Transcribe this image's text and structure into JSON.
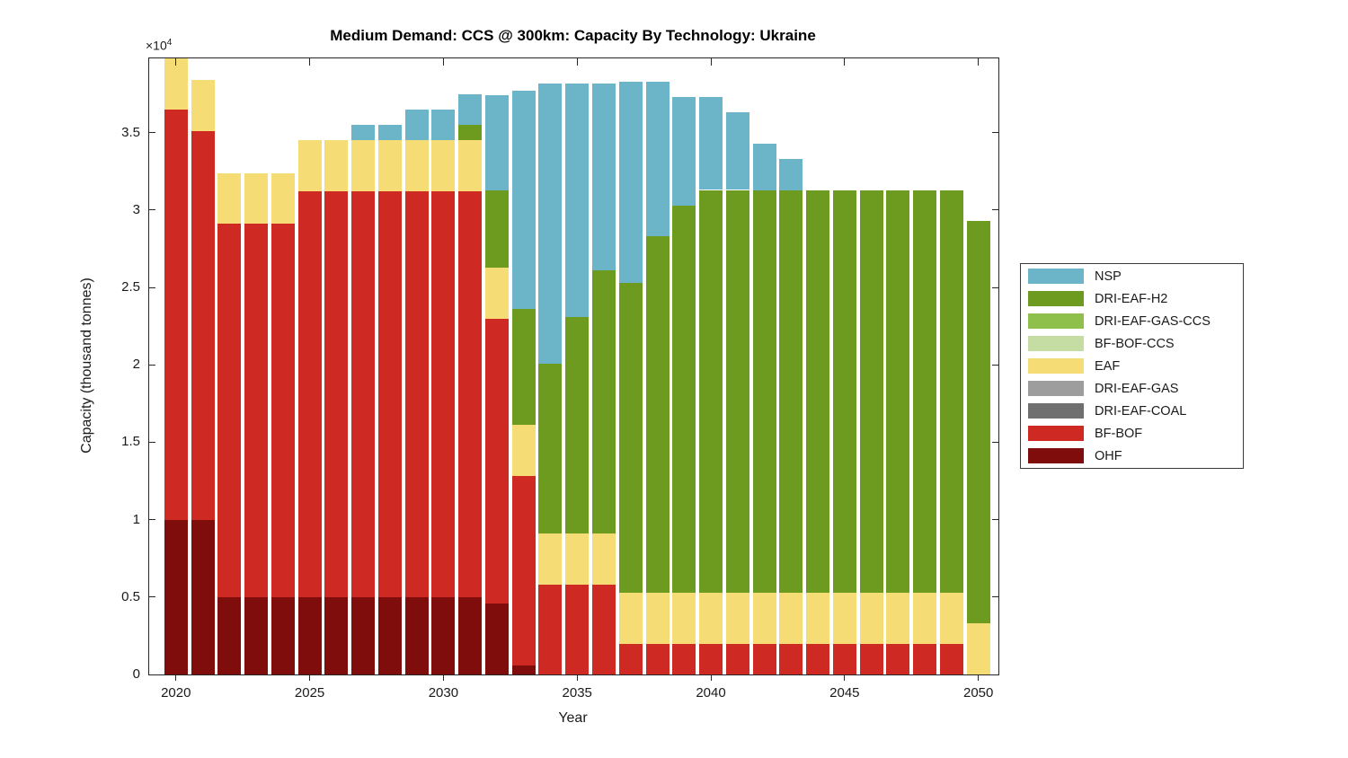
{
  "chart_data": {
    "type": "bar",
    "stacked": true,
    "grid": false,
    "legend_position": "outside-right",
    "title": "Medium Demand: CCS @ 300km: Capacity By Technology: Ukraine",
    "xlabel": "Year",
    "ylabel": "Capacity (thousand tonnes)",
    "y_exponent_label": {
      "base": "×10",
      "power": "4"
    },
    "ylim": [
      0,
      39800
    ],
    "xlim": [
      2019,
      2050.75
    ],
    "y_tick_values": [
      0,
      5000,
      10000,
      15000,
      20000,
      25000,
      30000,
      35000
    ],
    "y_tick_labels": [
      "0",
      "0.5",
      "1",
      "1.5",
      "2",
      "2.5",
      "3",
      "3.5"
    ],
    "x_tick_values": [
      2020,
      2025,
      2030,
      2035,
      2040,
      2045,
      2050
    ],
    "x_tick_labels": [
      "2020",
      "2025",
      "2030",
      "2035",
      "2040",
      "2045",
      "2050"
    ],
    "axis_color": "#262626",
    "text_color": "#1a1a1a",
    "years": [
      2020,
      2021,
      2022,
      2023,
      2024,
      2025,
      2026,
      2027,
      2028,
      2029,
      2030,
      2031,
      2032,
      2033,
      2034,
      2035,
      2036,
      2037,
      2038,
      2039,
      2040,
      2041,
      2042,
      2043,
      2044,
      2045,
      2046,
      2047,
      2048,
      2049,
      2050
    ],
    "series": [
      {
        "name": "OHF",
        "color": "#7E0D0C",
        "values": [
          10000,
          10000,
          5000,
          5000,
          5000,
          5000,
          5000,
          5000,
          5000,
          5000,
          5000,
          5000,
          4600,
          600,
          0,
          0,
          0,
          0,
          0,
          0,
          0,
          0,
          0,
          0,
          0,
          0,
          0,
          0,
          0,
          0,
          0
        ]
      },
      {
        "name": "BF-BOF",
        "color": "#CE2A23",
        "values": [
          26500,
          25100,
          24100,
          24100,
          24100,
          26200,
          26200,
          26200,
          26200,
          26200,
          26200,
          26200,
          18400,
          12200,
          5800,
          5800,
          5800,
          2000,
          2000,
          2000,
          2000,
          2000,
          2000,
          2000,
          2000,
          2000,
          2000,
          2000,
          2000,
          2000,
          0
        ]
      },
      {
        "name": "DRI-EAF-COAL",
        "color": "#6F6F6F",
        "values": [
          0,
          0,
          0,
          0,
          0,
          0,
          0,
          0,
          0,
          0,
          0,
          0,
          0,
          0,
          0,
          0,
          0,
          0,
          0,
          0,
          0,
          0,
          0,
          0,
          0,
          0,
          0,
          0,
          0,
          0,
          0
        ]
      },
      {
        "name": "DRI-EAF-GAS",
        "color": "#9D9D9D",
        "values": [
          0,
          0,
          0,
          0,
          0,
          0,
          0,
          0,
          0,
          0,
          0,
          0,
          0,
          0,
          0,
          0,
          0,
          0,
          0,
          0,
          0,
          0,
          0,
          0,
          0,
          0,
          0,
          0,
          0,
          0,
          0
        ]
      },
      {
        "name": "EAF",
        "color": "#F5DC74",
        "values": [
          3300,
          3300,
          3300,
          3300,
          3300,
          3300,
          3300,
          3300,
          3300,
          3300,
          3300,
          3300,
          3300,
          3300,
          3300,
          3300,
          3300,
          3300,
          3300,
          3300,
          3300,
          3300,
          3300,
          3300,
          3300,
          3300,
          3300,
          3300,
          3300,
          3300,
          3300
        ]
      },
      {
        "name": "BF-BOF-CCS",
        "color": "#C5DCA3",
        "values": [
          0,
          0,
          0,
          0,
          0,
          0,
          0,
          0,
          0,
          0,
          0,
          0,
          0,
          0,
          0,
          0,
          0,
          0,
          0,
          0,
          0,
          0,
          0,
          0,
          0,
          0,
          0,
          0,
          0,
          0,
          0
        ]
      },
      {
        "name": "DRI-EAF-GAS-CCS",
        "color": "#8FC04B",
        "values": [
          0,
          0,
          0,
          0,
          0,
          0,
          0,
          0,
          0,
          0,
          0,
          0,
          0,
          0,
          0,
          0,
          0,
          0,
          0,
          0,
          0,
          0,
          0,
          0,
          0,
          0,
          0,
          0,
          0,
          0,
          0
        ]
      },
      {
        "name": "DRI-EAF-H2",
        "color": "#6C9B20",
        "values": [
          0,
          0,
          0,
          0,
          0,
          0,
          0,
          0,
          0,
          0,
          0,
          1000,
          5000,
          7500,
          11000,
          14000,
          17000,
          20000,
          23000,
          25000,
          26000,
          26000,
          26000,
          26000,
          26000,
          26000,
          26000,
          26000,
          26000,
          26000,
          26000
        ]
      },
      {
        "name": "NSP",
        "color": "#6CB5C9",
        "values": [
          0,
          0,
          0,
          0,
          0,
          0,
          0,
          1000,
          1000,
          2000,
          2000,
          2000,
          6100,
          14100,
          18100,
          15100,
          12100,
          13000,
          10000,
          7000,
          6000,
          5000,
          3000,
          2000,
          0,
          0,
          0,
          0,
          0,
          0,
          0
        ]
      }
    ]
  }
}
